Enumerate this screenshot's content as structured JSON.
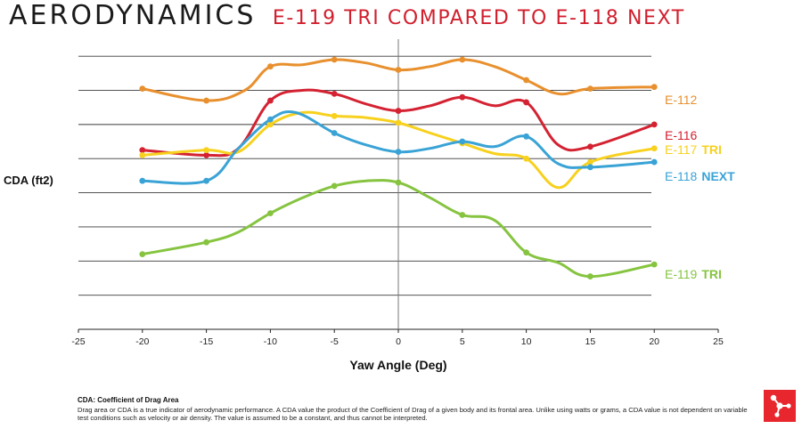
{
  "header": {
    "title": "AERODYNAMICS",
    "subtitle": "E-119 TRI COMPARED TO E-118 NEXT"
  },
  "colors": {
    "orange": "#e8902e",
    "red": "#d42232",
    "yellow": "#f7d11e",
    "blue": "#3aa3d6",
    "green": "#86c440",
    "logo_red": "#e8262d",
    "title_red": "#d11f2e"
  },
  "chart_data": {
    "type": "line",
    "title": "",
    "xlabel": "Yaw Angle (Deg)",
    "ylabel": "CDA (ft2)",
    "xlim": [
      -25,
      25
    ],
    "ylim": [
      0,
      8.5
    ],
    "x_ticks": [
      "-25",
      "-20",
      "-15",
      "-10",
      "-5",
      "0",
      "5",
      "10",
      "15",
      "20",
      "25"
    ],
    "grid": "horizontal",
    "legend": "right-end labels",
    "series": [
      {
        "name": "E-112",
        "label_parts": [
          "E-112",
          ""
        ],
        "color": "#e8902e",
        "points": [
          [
            -20,
            7.05
          ],
          [
            -15,
            6.7
          ],
          [
            -10,
            7.7
          ],
          [
            -5,
            7.9
          ],
          [
            0,
            7.6
          ],
          [
            5,
            7.9
          ],
          [
            10,
            7.3
          ],
          [
            15,
            7.05
          ],
          [
            20,
            7.1
          ]
        ],
        "curve": [
          [
            -20,
            7.05
          ],
          [
            -15,
            6.7
          ],
          [
            -12,
            7.0
          ],
          [
            -10,
            7.7
          ],
          [
            -7.5,
            7.75
          ],
          [
            -5,
            7.9
          ],
          [
            -2.5,
            7.8
          ],
          [
            0,
            7.6
          ],
          [
            2.5,
            7.7
          ],
          [
            5,
            7.9
          ],
          [
            7.5,
            7.7
          ],
          [
            10,
            7.3
          ],
          [
            12.5,
            6.9
          ],
          [
            15,
            7.05
          ],
          [
            20,
            7.1
          ]
        ]
      },
      {
        "name": "E-116",
        "label_parts": [
          "E-116",
          ""
        ],
        "color": "#d42232",
        "points": [
          [
            -20,
            5.25
          ],
          [
            -15,
            5.1
          ],
          [
            -10,
            6.7
          ],
          [
            -5,
            6.9
          ],
          [
            0,
            6.4
          ],
          [
            5,
            6.8
          ],
          [
            10,
            6.65
          ],
          [
            15,
            5.35
          ],
          [
            20,
            6.0
          ]
        ],
        "curve": [
          [
            -20,
            5.25
          ],
          [
            -15,
            5.1
          ],
          [
            -12.5,
            5.3
          ],
          [
            -10,
            6.7
          ],
          [
            -7.5,
            7.0
          ],
          [
            -5,
            6.9
          ],
          [
            -2.5,
            6.6
          ],
          [
            0,
            6.4
          ],
          [
            2.5,
            6.55
          ],
          [
            5,
            6.8
          ],
          [
            7.5,
            6.55
          ],
          [
            10,
            6.65
          ],
          [
            12.5,
            5.4
          ],
          [
            15,
            5.35
          ],
          [
            20,
            6.0
          ]
        ]
      },
      {
        "name": "E-117 TRI",
        "label_parts": [
          "E-117",
          "TRI"
        ],
        "color": "#f7d11e",
        "points": [
          [
            -20,
            5.1
          ],
          [
            -15,
            5.25
          ],
          [
            -10,
            6.0
          ],
          [
            -5,
            6.25
          ],
          [
            0,
            6.05
          ],
          [
            5,
            5.45
          ],
          [
            10,
            5.0
          ],
          [
            15,
            4.9
          ],
          [
            20,
            5.3
          ]
        ],
        "curve": [
          [
            -20,
            5.1
          ],
          [
            -15,
            5.25
          ],
          [
            -12.5,
            5.2
          ],
          [
            -10,
            6.0
          ],
          [
            -7.5,
            6.35
          ],
          [
            -5,
            6.25
          ],
          [
            -2.5,
            6.2
          ],
          [
            0,
            6.05
          ],
          [
            2.5,
            5.75
          ],
          [
            5,
            5.45
          ],
          [
            7.5,
            5.15
          ],
          [
            10,
            5.0
          ],
          [
            12.5,
            4.15
          ],
          [
            15,
            4.9
          ],
          [
            20,
            5.3
          ]
        ]
      },
      {
        "name": "E-118 NEXT",
        "label_parts": [
          "E-118",
          "NEXT"
        ],
        "color": "#3aa3d6",
        "points": [
          [
            -20,
            4.35
          ],
          [
            -15,
            4.35
          ],
          [
            -10,
            6.15
          ],
          [
            -5,
            5.75
          ],
          [
            0,
            5.2
          ],
          [
            5,
            5.5
          ],
          [
            10,
            5.65
          ],
          [
            15,
            4.75
          ],
          [
            20,
            4.9
          ]
        ],
        "curve": [
          [
            -20,
            4.35
          ],
          [
            -15,
            4.35
          ],
          [
            -12.5,
            5.3
          ],
          [
            -10,
            6.15
          ],
          [
            -8,
            6.35
          ],
          [
            -5,
            5.75
          ],
          [
            -2.5,
            5.4
          ],
          [
            0,
            5.2
          ],
          [
            2.5,
            5.3
          ],
          [
            5,
            5.5
          ],
          [
            7.5,
            5.35
          ],
          [
            10,
            5.65
          ],
          [
            12.5,
            4.85
          ],
          [
            15,
            4.75
          ],
          [
            20,
            4.9
          ]
        ]
      },
      {
        "name": "E-119 TRI",
        "label_parts": [
          "E-119",
          "TRI"
        ],
        "color": "#86c440",
        "points": [
          [
            -20,
            2.2
          ],
          [
            -15,
            2.55
          ],
          [
            -10,
            3.4
          ],
          [
            -5,
            4.2
          ],
          [
            0,
            4.3
          ],
          [
            5,
            3.35
          ],
          [
            10,
            2.25
          ],
          [
            15,
            1.55
          ],
          [
            20,
            1.9
          ]
        ],
        "curve": [
          [
            -20,
            2.2
          ],
          [
            -15,
            2.55
          ],
          [
            -12.5,
            2.85
          ],
          [
            -10,
            3.4
          ],
          [
            -7.5,
            3.85
          ],
          [
            -5,
            4.2
          ],
          [
            -2.5,
            4.35
          ],
          [
            0,
            4.3
          ],
          [
            2.5,
            3.85
          ],
          [
            5,
            3.35
          ],
          [
            7.5,
            3.2
          ],
          [
            10,
            2.25
          ],
          [
            12.5,
            1.95
          ],
          [
            15,
            1.55
          ],
          [
            20,
            1.9
          ]
        ]
      }
    ]
  },
  "footnote": {
    "title": "CDA: Coefficient of Drag Area",
    "text": "Drag area or CDA is a true indicator of aerodynamic performance. A CDA value the product of the Coefficient of Drag of a given body and its frontal area. Unlike using watts or grams, a CDA value is not dependent on variable test conditions such as velocity or air density. The value is assumed to be a constant, and thus cannot be interpreted."
  },
  "logo": {
    "icon": "molecule-icon"
  }
}
